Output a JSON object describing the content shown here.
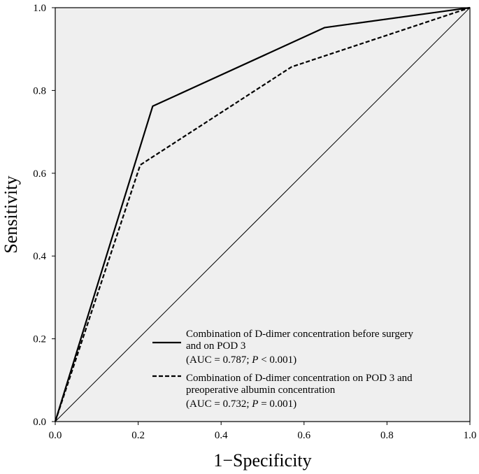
{
  "chart_data": {
    "type": "line",
    "title": "",
    "xlabel": "1−Specificity",
    "ylabel": "Sensitivity",
    "xlim": [
      0,
      1
    ],
    "ylim": [
      0,
      1
    ],
    "xticks": [
      "0.0",
      "0.2",
      "0.4",
      "0.6",
      "0.8",
      "1.0"
    ],
    "yticks": [
      "0.0",
      "0.2",
      "0.4",
      "0.6",
      "0.8",
      "1.0"
    ],
    "grid": false,
    "legend_position": "bottom-right",
    "background": "#efefef",
    "series": [
      {
        "name": "Combination of D-dimer concentration before surgery and on POD 3",
        "legend_lines": [
          "Combination of D-dimer concentration before surgery",
          "and on POD 3"
        ],
        "auc_text": {
          "prefix": "(AUC = 0.787; ",
          "p": "P",
          "suffix": " < 0.001)"
        },
        "style": "solid",
        "color": "#000000",
        "x": [
          0,
          0.235,
          0.65,
          1
        ],
        "y": [
          0,
          0.762,
          0.952,
          1
        ]
      },
      {
        "name": "Combination of D-dimer concentration on POD 3 and preoperative albumin concentration",
        "legend_lines": [
          "Combination of D-dimer concentration on POD 3 and",
          "preoperative albumin concentration"
        ],
        "auc_text": {
          "prefix": "(AUC = 0.732; ",
          "p": "P",
          "suffix": " = 0.001)"
        },
        "style": "dashed",
        "color": "#000000",
        "x": [
          0,
          0.205,
          0.57,
          1
        ],
        "y": [
          0,
          0.62,
          0.857,
          1
        ]
      },
      {
        "name": "",
        "style": "reference",
        "color": "#000000",
        "x": [
          0,
          1
        ],
        "y": [
          0,
          1
        ]
      }
    ]
  }
}
